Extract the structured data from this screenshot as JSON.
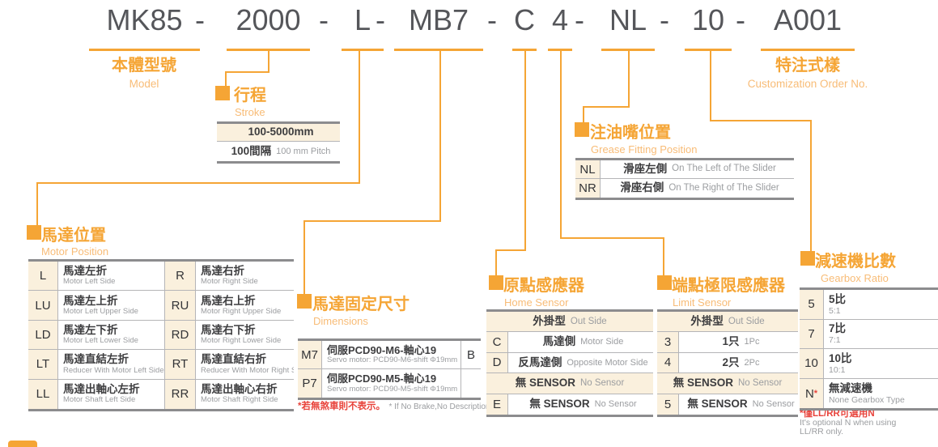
{
  "order_code": {
    "separator": "-",
    "segments": [
      {
        "key": "model",
        "text": "MK85"
      },
      {
        "key": "stroke",
        "text": "2000"
      },
      {
        "key": "motor_position",
        "text": "L"
      },
      {
        "key": "dimensions",
        "text": "MB7"
      },
      {
        "key": "home_sensor",
        "text": "C"
      },
      {
        "key": "limit_sensor",
        "text": "4"
      },
      {
        "key": "grease",
        "text": "NL"
      },
      {
        "key": "gearbox",
        "text": "10"
      },
      {
        "key": "custom",
        "text": "A001"
      }
    ]
  },
  "model": {
    "title_zh": "本體型號",
    "title_en": "Model"
  },
  "custom": {
    "title_zh": "特注式樣",
    "title_en": "Customization Order No."
  },
  "stroke": {
    "title_zh": "行程",
    "title_en": "Stroke",
    "range": "100-5000mm",
    "pitch_zh": "100間隔",
    "pitch_en": "100 mm Pitch"
  },
  "motor_position": {
    "title_zh": "馬達位置",
    "title_en": "Motor Position",
    "rows": [
      {
        "code": "L",
        "zh": "馬達左折",
        "en": "Motor Left Side",
        "code2": "R",
        "zh2": "馬達右折",
        "en2": "Motor Right Side"
      },
      {
        "code": "LU",
        "zh": "馬達左上折",
        "en": "Motor Left Upper Side",
        "code2": "RU",
        "zh2": "馬達右上折",
        "en2": "Motor Right Upper Side"
      },
      {
        "code": "LD",
        "zh": "馬達左下折",
        "en": "Motor Left Lower Side",
        "code2": "RD",
        "zh2": "馬達右下折",
        "en2": "Motor Right Lower Side"
      },
      {
        "code": "LT",
        "zh": "馬達直結左折",
        "en": "Reducer With Motor Left Side",
        "code2": "RT",
        "zh2": "馬達直結右折",
        "en2": "Reducer With Motor Right Side"
      },
      {
        "code": "LL",
        "zh": "馬達出軸心左折",
        "en": "Motor Shaft Left Side",
        "code2": "RR",
        "zh2": "馬達出軸心右折",
        "en2": "Motor Shaft Right Side"
      }
    ]
  },
  "dimensions": {
    "title_zh": "馬達固定尺寸",
    "title_en": "Dimensions",
    "rows": [
      {
        "code": "M7",
        "zh": "伺服PCD90-M6-軸心19",
        "en": "Servo motor: PCD90-M6-shift Φ19mm",
        "brake": "B"
      },
      {
        "code": "P7",
        "zh": "伺服PCD90-M5-軸心19",
        "en": "Servo motor: PCD90-M5-shift Φ19mm",
        "brake": ""
      }
    ],
    "footnote_zh": "*若無煞車則不表示。",
    "footnote_en": "* If No Brake,No Description."
  },
  "home_sensor": {
    "title_zh": "原點感應器",
    "title_en": "Home Sensor",
    "rows": [
      {
        "type": "header",
        "zh": "外掛型",
        "en": "Out Side"
      },
      {
        "type": "item",
        "code": "C",
        "zh": "馬達側",
        "en": "Motor Side"
      },
      {
        "type": "item",
        "code": "D",
        "zh": "反馬達側",
        "en": "Opposite Motor Side"
      },
      {
        "type": "header",
        "zh": "無 SENSOR",
        "en": "No Sensor"
      },
      {
        "type": "item",
        "code": "E",
        "zh": "無 SENSOR",
        "en": "No Sensor"
      }
    ]
  },
  "limit_sensor": {
    "title_zh": "端點極限感應器",
    "title_en": "Limit Sensor",
    "rows": [
      {
        "type": "header",
        "zh": "外掛型",
        "en": "Out Side"
      },
      {
        "type": "item",
        "code": "3",
        "zh": "1只",
        "en": "1Pc"
      },
      {
        "type": "item",
        "code": "4",
        "zh": "2只",
        "en": "2Pc"
      },
      {
        "type": "header",
        "zh": "無 SENSOR",
        "en": "No Sensor"
      },
      {
        "type": "item",
        "code": "5",
        "zh": "無 SENSOR",
        "en": "No Sensor"
      }
    ]
  },
  "grease": {
    "title_zh": "注油嘴位置",
    "title_en": "Grease Fitting Position",
    "rows": [
      {
        "code": "NL",
        "zh": "滑座左側",
        "en": "On The Left of The Slider"
      },
      {
        "code": "NR",
        "zh": "滑座右側",
        "en": "On The Right of The Slider"
      }
    ]
  },
  "gearbox": {
    "title_zh": "減速機比數",
    "title_en": "Gearbox Ratio",
    "rows": [
      {
        "code": "5",
        "sup": "",
        "zh": "5比",
        "en": "5:1"
      },
      {
        "code": "7",
        "sup": "",
        "zh": "7比",
        "en": "7:1"
      },
      {
        "code": "10",
        "sup": "",
        "zh": "10比",
        "en": "10:1"
      },
      {
        "code": "N",
        "sup": "*",
        "zh": "無減速機",
        "en": "None Gearbox Type"
      }
    ],
    "footnote_zh": "*僅LL/RR可選用N",
    "footnote_en_line1": "It's optional N when using",
    "footnote_en_line2": "LL/RR only."
  },
  "colors": {
    "orange": "#F5A535",
    "orange_light": "#F8BC77",
    "title_gray": "#55565A",
    "text_dark": "#3D3D3F",
    "text_gray": "#9B9DA0",
    "beige": "#FAF0DD",
    "red": "#E8433B",
    "border_dark": "#8C8C8E",
    "border_light": "#B5B5B7"
  }
}
